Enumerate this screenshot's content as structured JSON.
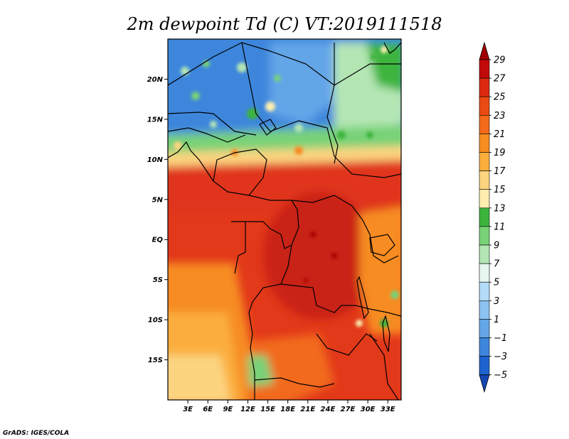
{
  "chart_data": {
    "type": "heatmap",
    "title": "2m dewpoint Td (C) VT:2019111518",
    "variable": "2m dewpoint Td",
    "units": "C",
    "valid_time": "2019111518",
    "credit": "GrADS: IGES/COLA",
    "x_axis": {
      "label": "",
      "range": [
        0,
        35
      ],
      "tick_values": [
        3,
        6,
        9,
        12,
        15,
        18,
        21,
        24,
        27,
        30,
        33
      ],
      "tick_labels": [
        "3E",
        "6E",
        "9E",
        "12E",
        "15E",
        "18E",
        "21E",
        "24E",
        "27E",
        "30E",
        "33E"
      ]
    },
    "y_axis": {
      "label": "",
      "range": [
        -20,
        25
      ],
      "tick_values": [
        20,
        15,
        10,
        5,
        0,
        -5,
        -10,
        -15
      ],
      "tick_labels": [
        "20N",
        "15N",
        "10N",
        "5N",
        "EQ",
        "5S",
        "10S",
        "15S"
      ]
    },
    "colorbar": {
      "levels": [
        29,
        27,
        25,
        23,
        21,
        19,
        17,
        15,
        13,
        11,
        9,
        7,
        5,
        3,
        1,
        -1,
        -3,
        -5
      ],
      "label_texts": [
        "29",
        "27",
        "25",
        "23",
        "21",
        "19",
        "17",
        "15",
        "13",
        "11",
        "9",
        "7",
        "5",
        "3",
        "1",
        "−1",
        "−3",
        "−5"
      ],
      "colors": [
        "#a00000",
        "#c20a0a",
        "#dc2a10",
        "#ea4a14",
        "#f26a1a",
        "#f78c20",
        "#fbae3c",
        "#fcd480",
        "#fdeeb0",
        "#3cb43c",
        "#78d278",
        "#b4e6b4",
        "#e6f8f0",
        "#b4dcf8",
        "#8cc2f0",
        "#64a6e8",
        "#3c86dc",
        "#1e64d0",
        "#1446b4"
      ]
    },
    "field_description_values": {
      "sahara_north_of_15N": -3,
      "sahel_12N": 11,
      "coastal_west_africa_8N": 24,
      "congo_basin_0": 24,
      "east_african_highlands": 13,
      "atlantic_10S": 22,
      "atlantic_20S": 16,
      "angola_plateau_15S": 20
    }
  }
}
